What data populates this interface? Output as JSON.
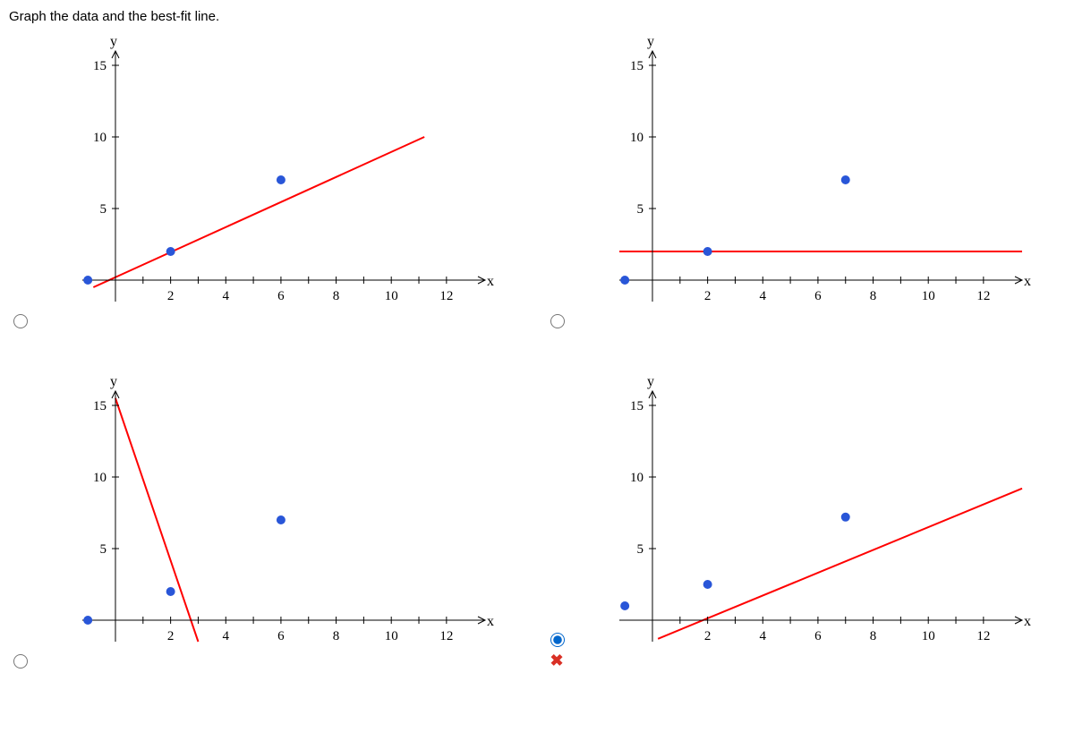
{
  "question": "Graph the data and the best-fit line.",
  "selected_index": 3,
  "wrong_mark_color": "#d93025",
  "axis": {
    "x_label": "x",
    "y_label": "y",
    "x_ticks": [
      2,
      4,
      6,
      8,
      10,
      12
    ],
    "y_ticks": [
      5,
      10,
      15
    ],
    "xlim": [
      -1.2,
      13.4
    ],
    "ylim": [
      -1.5,
      16
    ],
    "tick_fontsize": 15,
    "label_fontsize": 16,
    "axis_color": "#000000",
    "tick_color": "#000000",
    "background": "#ffffff"
  },
  "point_style": {
    "color": "#2956d8",
    "radius": 5
  },
  "line_style": {
    "color": "#ff0000",
    "width": 2
  },
  "charts": [
    {
      "points": [
        [
          -1,
          0
        ],
        [
          2,
          2
        ],
        [
          6,
          7
        ]
      ],
      "line": {
        "x1": -0.8,
        "y1": -0.5,
        "x2": 11.2,
        "y2": 10
      }
    },
    {
      "points": [
        [
          -1,
          0
        ],
        [
          2,
          2
        ],
        [
          7,
          7
        ]
      ],
      "line": {
        "x1": -1.2,
        "y1": 2,
        "x2": 13.4,
        "y2": 2
      }
    },
    {
      "points": [
        [
          -1,
          0
        ],
        [
          2,
          2
        ],
        [
          6,
          7
        ]
      ],
      "line": {
        "x1": 0,
        "y1": 15.5,
        "x2": 3,
        "y2": -1.5
      }
    },
    {
      "points": [
        [
          -1,
          1
        ],
        [
          2,
          2.5
        ],
        [
          7,
          7.2
        ]
      ],
      "line": {
        "x1": 0.2,
        "y1": -1.3,
        "x2": 13.4,
        "y2": 9.2
      }
    }
  ]
}
